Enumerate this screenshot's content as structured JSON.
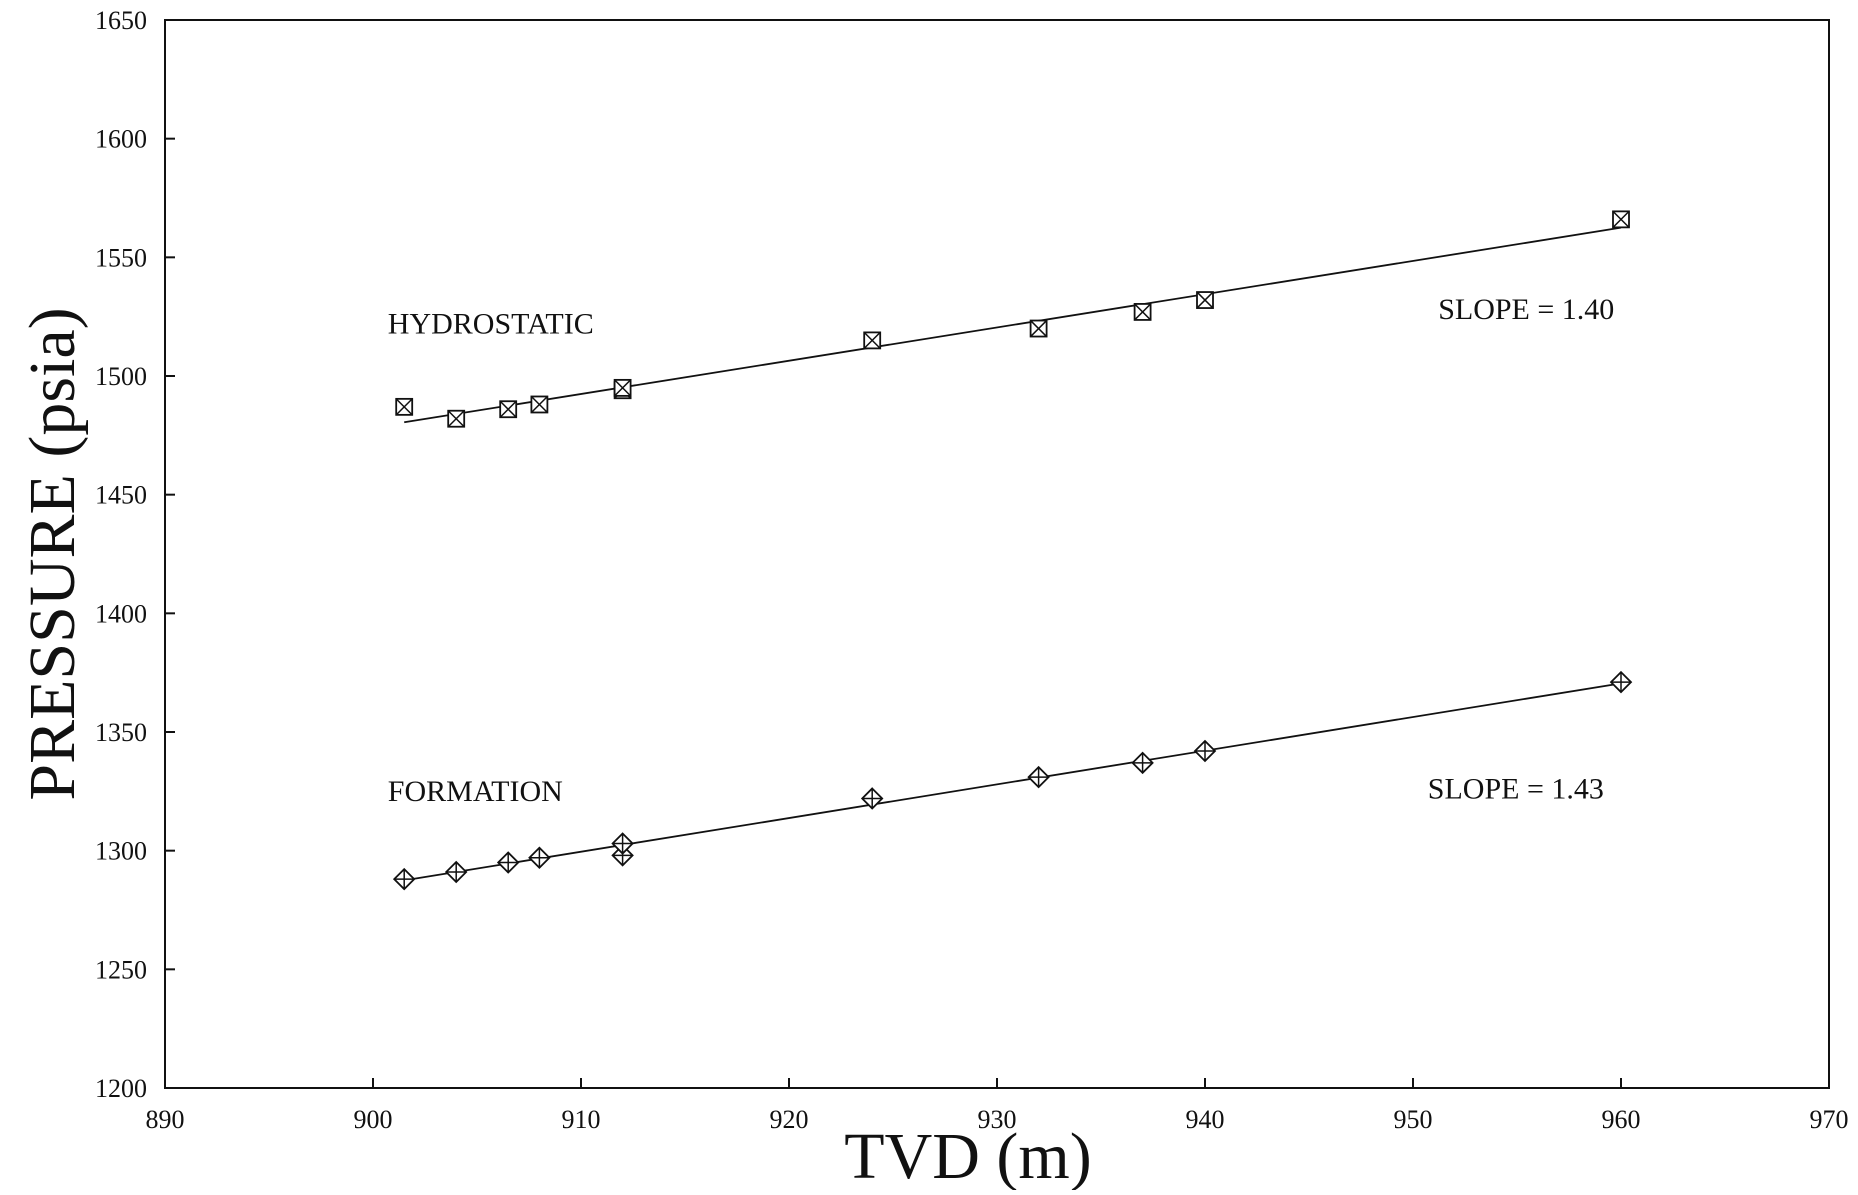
{
  "chart_data": {
    "type": "scatter",
    "title": "",
    "xlabel": "TVD (m)",
    "ylabel": "PRESSURE (psia)",
    "xlim": [
      890,
      970
    ],
    "ylim": [
      1200,
      1650
    ],
    "x_ticks": [
      "890",
      "900",
      "910",
      "920",
      "930",
      "940",
      "950",
      "960",
      "970"
    ],
    "y_ticks": [
      "1200",
      "1250",
      "1300",
      "1350",
      "1400",
      "1450",
      "1500",
      "1550",
      "1600",
      "1650"
    ],
    "grid": false,
    "legend": "none",
    "series": [
      {
        "label": "HYDROSTATIC",
        "marker": "square-x",
        "points": [
          {
            "x": 901.5,
            "y": 1487
          },
          {
            "x": 904,
            "y": 1482
          },
          {
            "x": 906.5,
            "y": 1486
          },
          {
            "x": 908,
            "y": 1488
          },
          {
            "x": 912,
            "y": 1494
          },
          {
            "x": 912,
            "y": 1495
          },
          {
            "x": 924,
            "y": 1515
          },
          {
            "x": 932,
            "y": 1520
          },
          {
            "x": 937,
            "y": 1527
          },
          {
            "x": 940,
            "y": 1532
          },
          {
            "x": 960,
            "y": 1566
          }
        ],
        "fit": {
          "x": [
            901.5,
            960
          ],
          "y": [
            1480.5,
            1562.5
          ]
        }
      },
      {
        "label": "FORMATION",
        "marker": "diamond-plus",
        "points": [
          {
            "x": 901.5,
            "y": 1288
          },
          {
            "x": 904,
            "y": 1291
          },
          {
            "x": 906.5,
            "y": 1295
          },
          {
            "x": 908,
            "y": 1297
          },
          {
            "x": 912,
            "y": 1298
          },
          {
            "x": 912,
            "y": 1303
          },
          {
            "x": 924,
            "y": 1322
          },
          {
            "x": 932,
            "y": 1331
          },
          {
            "x": 937,
            "y": 1337
          },
          {
            "x": 940,
            "y": 1342
          },
          {
            "x": 960,
            "y": 1371
          }
        ],
        "fit": {
          "x": [
            901.5,
            960
          ],
          "y": [
            1287.5,
            1370.5
          ]
        }
      }
    ],
    "annotations": [
      {
        "text": "HYDROSTATIC",
        "x": 901,
        "y": 1518
      },
      {
        "text": "SLOPE = 1.40",
        "x": 951.5,
        "y": 1524
      },
      {
        "text": "FORMATION",
        "x": 901,
        "y": 1321
      },
      {
        "text": "SLOPE = 1.43",
        "x": 951,
        "y": 1322
      }
    ]
  }
}
